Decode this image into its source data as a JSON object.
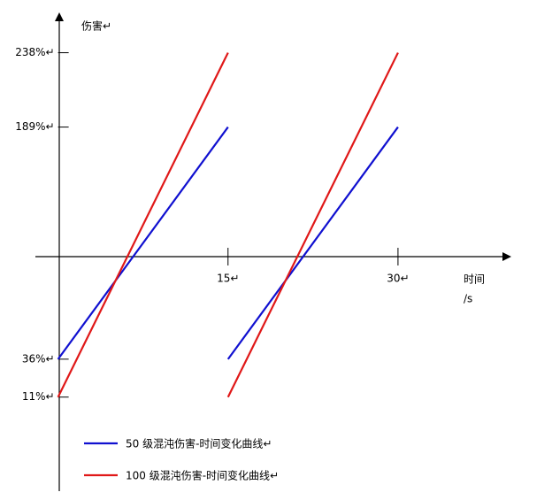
{
  "chart_data": {
    "type": "line",
    "y_axis_label": "伤害↵",
    "x_axis_label": [
      "时间",
      "/s"
    ],
    "x": [
      0,
      15,
      15,
      15,
      30
    ],
    "xlim": [
      -2,
      40
    ],
    "xticks": [
      {
        "value": 15,
        "label": "15↵"
      },
      {
        "value": 30,
        "label": "30↵"
      }
    ],
    "ylim": [
      -51,
      264
    ],
    "yticks": [
      {
        "value": 238,
        "label": "238%↵"
      },
      {
        "value": 189,
        "label": "189%↵"
      },
      {
        "value": 36,
        "label": "36%↵"
      },
      {
        "value": 11,
        "label": "11%↵"
      }
    ],
    "series": [
      {
        "name": "50 级混沌伤害-时间变化曲线↵",
        "color": "#1010d0",
        "values": [
          36,
          189,
          null,
          36,
          189
        ]
      },
      {
        "name": "100 级混沌伤害-时间变化曲线↵",
        "color": "#e01818",
        "values": [
          11,
          238,
          null,
          11,
          238
        ]
      }
    ]
  }
}
